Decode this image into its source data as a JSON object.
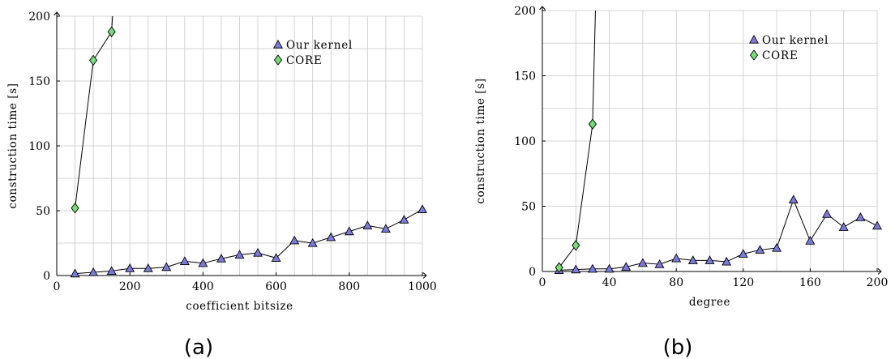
{
  "charts": [
    {
      "caption": "(a)",
      "chart_data": {
        "type": "line",
        "xlabel": "coefficient bitsize",
        "ylabel": "construction time [s]",
        "xlim": [
          0,
          1000
        ],
        "ylim": [
          0,
          200
        ],
        "x_ticks": [
          0,
          200,
          400,
          600,
          800,
          1000
        ],
        "x_grid": [
          0,
          50,
          100,
          150,
          200,
          250,
          300,
          350,
          400,
          450,
          500,
          550,
          600,
          650,
          700,
          750,
          800,
          850,
          900,
          950,
          1000
        ],
        "y_ticks": [
          0,
          50,
          100,
          150,
          200
        ],
        "y_grid": [
          0,
          25,
          50,
          75,
          100,
          125,
          150,
          175,
          200
        ],
        "grid": true,
        "legend_position": "top-right",
        "series": [
          {
            "name": "Our kernel",
            "marker": "triangle",
            "color": "#7b7bdc",
            "x": [
              50,
              100,
              150,
              200,
              250,
              300,
              350,
              400,
              450,
              500,
              550,
              600,
              650,
              700,
              750,
              800,
              850,
              900,
              950,
              1000
            ],
            "y": [
              1.5,
              2.5,
              3.5,
              5.5,
              5.5,
              6.5,
              11,
              9.5,
              13,
              16,
              17.5,
              13.5,
              27,
              25,
              29.5,
              34,
              38.5,
              36,
              43,
              51
            ]
          },
          {
            "name": "CORE",
            "marker": "diamond",
            "color": "#77dd77",
            "x": [
              50,
              100,
              150,
              160
            ],
            "y": [
              52,
              166,
              188,
              235
            ],
            "marker_count": 3
          }
        ]
      }
    },
    {
      "caption": "(b)",
      "chart_data": {
        "type": "line",
        "xlabel": "degree",
        "ylabel": "construction time [s]",
        "xlim": [
          0,
          200
        ],
        "ylim": [
          0,
          200
        ],
        "x_ticks": [
          0,
          40,
          80,
          120,
          160,
          200
        ],
        "x_grid": [
          0,
          20,
          40,
          60,
          80,
          100,
          120,
          140,
          160,
          180,
          200
        ],
        "y_ticks": [
          0,
          50,
          100,
          150,
          200
        ],
        "y_grid": [
          0,
          25,
          50,
          75,
          100,
          125,
          150,
          175,
          200
        ],
        "grid": true,
        "legend_position": "top-right",
        "series": [
          {
            "name": "Our kernel",
            "marker": "triangle",
            "color": "#7b7bdc",
            "x": [
              10,
              20,
              30,
              40,
              50,
              60,
              70,
              80,
              90,
              100,
              110,
              120,
              130,
              140,
              150,
              160,
              170,
              180,
              190,
              200
            ],
            "y": [
              1,
              1.5,
              2,
              2,
              3.5,
              6.5,
              5.5,
              10,
              8.5,
              8.5,
              7.5,
              13.5,
              16.5,
              18,
              55,
              23.5,
              44,
              34,
              41.5,
              35
            ]
          },
          {
            "name": "CORE",
            "marker": "diamond",
            "color": "#77dd77",
            "x": [
              10,
              20,
              30,
              32
            ],
            "y": [
              3,
              20,
              113,
              215
            ],
            "marker_count": 3
          }
        ]
      }
    }
  ]
}
